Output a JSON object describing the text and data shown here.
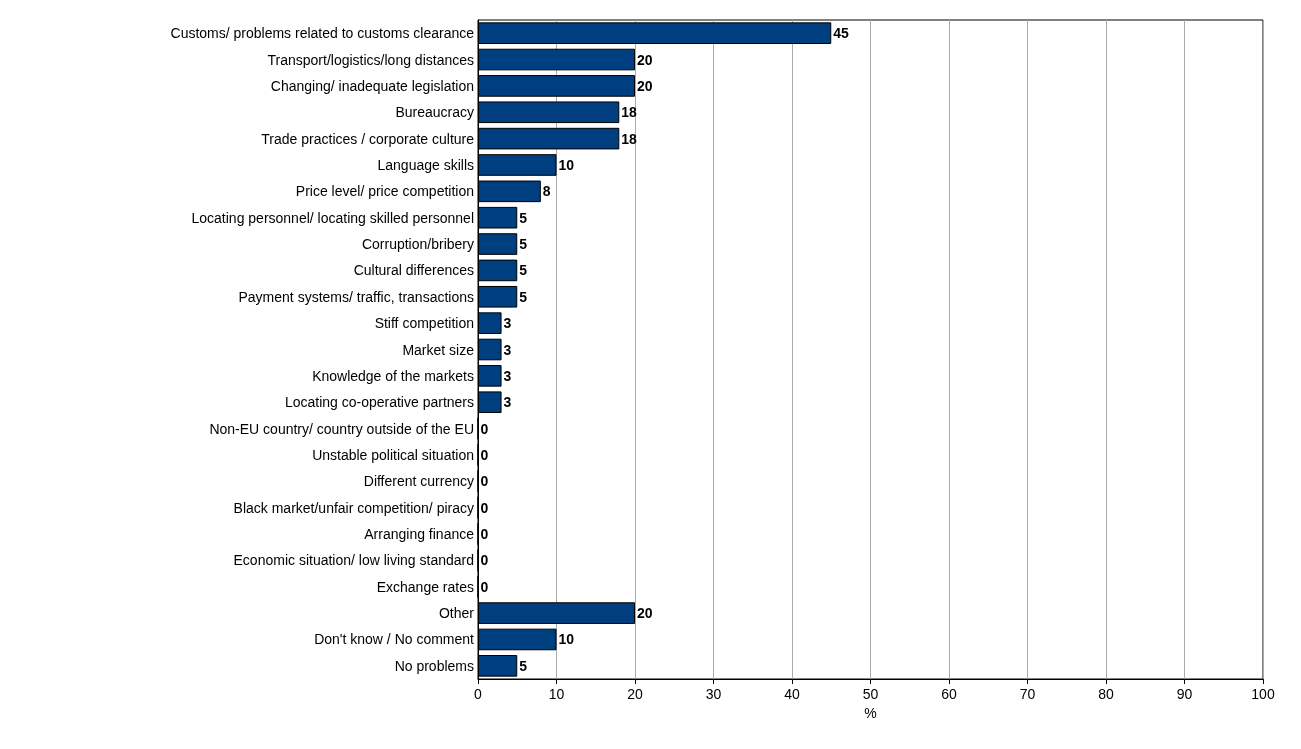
{
  "chart_data": {
    "type": "bar",
    "orientation": "horizontal",
    "xlabel": "%",
    "categories": [
      "Customs/ problems related to customs clearance",
      "Transport/logistics/long distances",
      "Changing/ inadequate legislation",
      "Bureaucracy",
      "Trade practices / corporate culture",
      "Language skills",
      "Price level/ price competition",
      "Locating personnel/ locating skilled personnel",
      "Corruption/bribery",
      "Cultural differences",
      "Payment systems/ traffic, transactions",
      "Stiff competition",
      "Market size",
      "Knowledge of the markets",
      "Locating co-operative partners",
      "Non-EU country/ country outside of the EU",
      "Unstable political situation",
      "Different currency",
      "Black market/unfair competition/ piracy",
      "Arranging finance",
      "Economic situation/ low living standard",
      "Exchange rates",
      "Other",
      "Don't know / No comment",
      "No problems"
    ],
    "values": [
      45,
      20,
      20,
      18,
      18,
      10,
      8,
      5,
      5,
      5,
      5,
      3,
      3,
      3,
      3,
      0,
      0,
      0,
      0,
      0,
      0,
      0,
      20,
      10,
      5
    ],
    "color": "#003f7f",
    "xlim": [
      0,
      100
    ],
    "xticks": [
      0,
      10,
      20,
      30,
      40,
      50,
      60,
      70,
      80,
      90,
      100
    ],
    "grid": "x",
    "data_labels": true
  }
}
